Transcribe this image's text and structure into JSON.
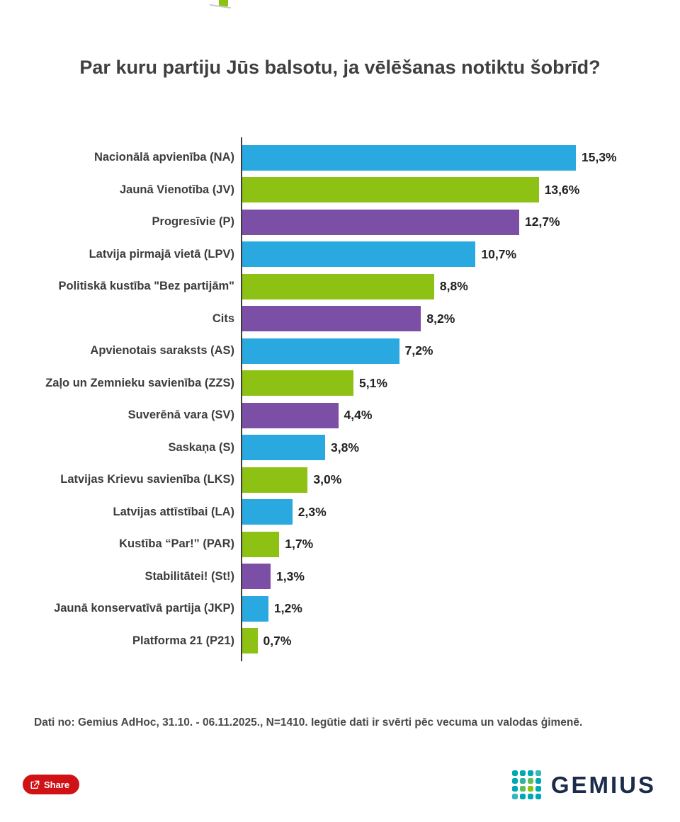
{
  "page": {
    "title": "Par kuru partiju Jūs balsotu, ja vēlēšanas notiktu šobrīd?",
    "footer": "Dati no: Gemius AdHoc, 31.10. - 06.11.2025., N=1410. Iegūtie dati ir svērti pēc vecuma un valodas ģimenē.",
    "share_label": "Share",
    "brand": "GEMIUS"
  },
  "colors": {
    "blue": "#29a9e0",
    "green": "#8dc113",
    "purple": "#7b4fa6",
    "share_red": "#d01217",
    "brand_navy": "#1b2b4b"
  },
  "logo": {
    "name": "gemius-logo",
    "dot_colors": [
      "#00a7b5",
      "#00a7b5",
      "#00a7b5",
      "#35b8c0",
      "#00a7b5",
      "#2fb1a4",
      "#63bd55",
      "#00a7b5",
      "#00a7b5",
      "#63bd55",
      "#8dc113",
      "#00a7b5",
      "#35b8c0",
      "#00a7b5",
      "#00a7b5",
      "#00a7b5"
    ]
  },
  "chart_data": {
    "type": "bar",
    "orientation": "horizontal",
    "title": "Par kuru partiju Jūs balsotu, ja vēlēšanas notiktu šobrīd?",
    "xlabel": "",
    "ylabel": "",
    "xlim": [
      0,
      15.3
    ],
    "grid": false,
    "legend": false,
    "categories": [
      "Nacionālā apvienība (NA)",
      "Jaunā Vienotība (JV)",
      "Progresīvie (P)",
      "Latvija pirmajā vietā (LPV)",
      "Politiskā kustība \"Bez partijām\"",
      "Cits",
      "Apvienotais saraksts (AS)",
      "Zaļo un Zemnieku savienība (ZZS)",
      "Suverēnā vara (SV)",
      "Saskaņa (S)",
      "Latvijas Krievu savienība (LKS)",
      "Latvijas attīstībai (LA)",
      "Kustība “Par!” (PAR)",
      "Stabilitātei! (St!)",
      "Jaunā konservatīvā partija (JKP)",
      "Platforma 21 (P21)"
    ],
    "values": [
      15.3,
      13.6,
      12.7,
      10.7,
      8.8,
      8.2,
      7.2,
      5.1,
      4.4,
      3.8,
      3.0,
      2.3,
      1.7,
      1.3,
      1.2,
      0.7
    ],
    "value_labels": [
      "15,3%",
      "13,6%",
      "12,7%",
      "10,7%",
      "8,8%",
      "8,2%",
      "7,2%",
      "5,1%",
      "4,4%",
      "3,8%",
      "3,0%",
      "2,3%",
      "1,7%",
      "1,3%",
      "1,2%",
      "0,7%"
    ],
    "bar_colors": [
      "blue",
      "green",
      "purple",
      "blue",
      "green",
      "purple",
      "blue",
      "green",
      "purple",
      "blue",
      "green",
      "blue",
      "green",
      "purple",
      "blue",
      "green"
    ]
  }
}
